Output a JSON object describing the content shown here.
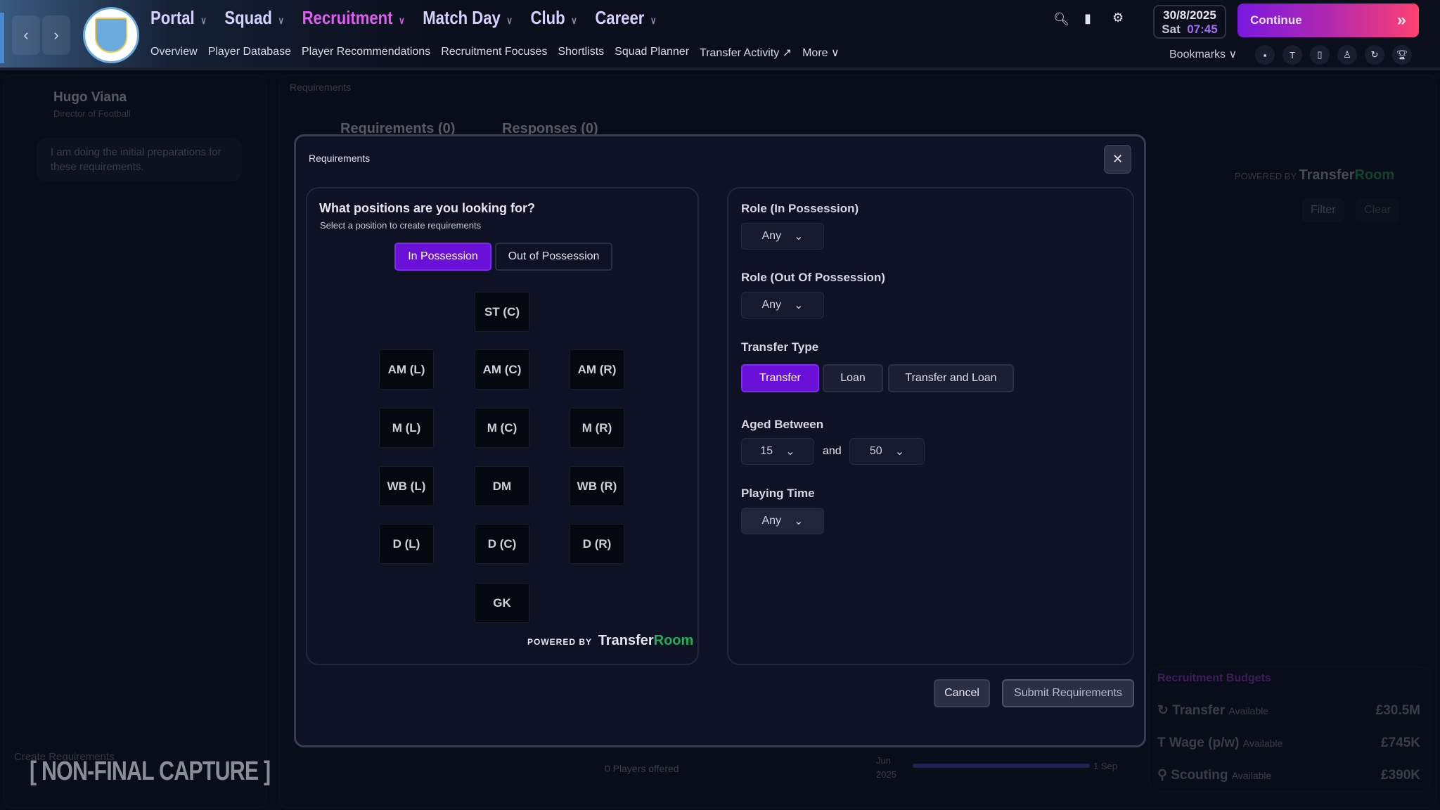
{
  "nav": {
    "main": [
      {
        "label": "Portal"
      },
      {
        "label": "Squad"
      },
      {
        "label": "Recruitment",
        "active": true
      },
      {
        "label": "Match Day"
      },
      {
        "label": "Club"
      },
      {
        "label": "Career"
      }
    ],
    "sub": [
      "Overview",
      "Player Database",
      "Player Recommendations",
      "Recruitment Focuses",
      "Shortlists",
      "Squad Planner",
      "Transfer Activity",
      "More"
    ],
    "bookmarks": "Bookmarks"
  },
  "date": {
    "date": "30/8/2025",
    "day": "Sat",
    "time": "07:45"
  },
  "continue_label": "Continue",
  "background": {
    "person_name": "Hugo Viana",
    "person_role": "Director of Football",
    "message": "I am doing the initial preparations for these requirements.",
    "breadcrumb": "Requirements",
    "tab_requirements": "Requirements (0)",
    "tab_responses": "Responses (0)",
    "filter": "Filter",
    "clear": "Clear",
    "create": "Create Requirements",
    "players_offered": "0 Players offered",
    "timeline_start_month": "Jun",
    "timeline_start_year": "2025",
    "timeline_end": "1 Sep",
    "budgets": {
      "title": "Recruitment Budgets",
      "rows": [
        {
          "name": "Transfer",
          "note": "Available",
          "value": "£30.5M"
        },
        {
          "name": "Wage (p/w)",
          "note": "Available",
          "value": "£745K"
        },
        {
          "name": "Scouting",
          "note": "Available",
          "value": "£390K"
        }
      ]
    },
    "watermark": "NON-FINAL CAPTURE"
  },
  "powered": {
    "by": "POWERED BY",
    "brand1": "Transfer",
    "brand2": "Room"
  },
  "modal": {
    "title": "Requirements",
    "question": "What positions are you looking for?",
    "hint": "Select a position to create requirements",
    "toggle": [
      "In Possession",
      "Out of Possession"
    ],
    "positions": [
      "ST (C)",
      "AM (L)",
      "AM (C)",
      "AM (R)",
      "M (L)",
      "M (C)",
      "M (R)",
      "WB (L)",
      "DM",
      "WB (R)",
      "D (L)",
      "D (C)",
      "D (R)",
      "GK"
    ],
    "role_in_label": "Role (In Possession)",
    "role_in_value": "Any",
    "role_out_label": "Role (Out Of Possession)",
    "role_out_value": "Any",
    "transfer_type_label": "Transfer Type",
    "transfer_types": [
      "Transfer",
      "Loan",
      "Transfer and Loan"
    ],
    "transfer_type_selected": "Transfer",
    "aged_label": "Aged Between",
    "age_min": "15",
    "and": "and",
    "age_max": "50",
    "playing_time_label": "Playing Time",
    "playing_time_value": "Any",
    "cancel": "Cancel",
    "submit": "Submit Requirements"
  },
  "colors": {
    "accent": "#6a10d8",
    "active_nav": "#e25cf2",
    "brand_green": "#1fae5a"
  }
}
